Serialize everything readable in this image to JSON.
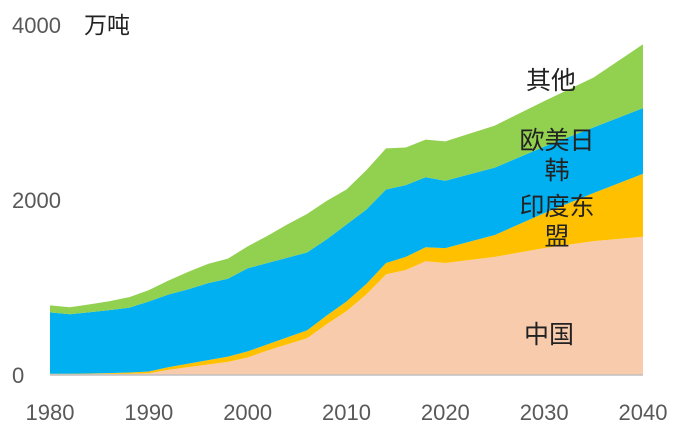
{
  "chart_data": {
    "type": "area",
    "stacked": true,
    "unit": "万吨",
    "ylim": [
      0,
      4000
    ],
    "xlim": [
      1980,
      2040
    ],
    "x_ticks": [
      "1980",
      "1990",
      "2000",
      "2010",
      "2020",
      "2030",
      "2040"
    ],
    "y_ticks": [
      "0",
      "2000",
      "4000"
    ],
    "grid": false,
    "legend": "inline labels",
    "x": [
      1980,
      1982,
      1984,
      1986,
      1988,
      1990,
      1992,
      1994,
      1996,
      1998,
      2000,
      2002,
      2004,
      2006,
      2008,
      2010,
      2012,
      2014,
      2016,
      2018,
      2020,
      2025,
      2030,
      2035,
      2040
    ],
    "series": [
      {
        "name": "中国",
        "label_lines": [
          "中国"
        ],
        "color": "#F8CBAD",
        "values": [
          10,
          10,
          12,
          12,
          14,
          20,
          60,
          90,
          120,
          150,
          200,
          280,
          350,
          420,
          580,
          730,
          920,
          1150,
          1200,
          1300,
          1280,
          1350,
          1450,
          1530,
          1580
        ]
      },
      {
        "name": "印度东盟",
        "label_lines": [
          "印度东",
          "盟"
        ],
        "color": "#FFC000",
        "values": [
          5,
          5,
          5,
          10,
          15,
          20,
          30,
          40,
          50,
          60,
          70,
          70,
          80,
          90,
          100,
          110,
          120,
          130,
          150,
          160,
          170,
          250,
          400,
          550,
          720
        ]
      },
      {
        "name": "欧美日韩",
        "label_lines": [
          "欧美日",
          "韩"
        ],
        "color": "#00B0F0",
        "values": [
          700,
          680,
          700,
          720,
          740,
          800,
          830,
          850,
          880,
          890,
          950,
          930,
          910,
          890,
          870,
          880,
          850,
          840,
          820,
          800,
          770,
          770,
          760,
          750,
          750
        ]
      },
      {
        "name": "其他",
        "label_lines": [
          "其他"
        ],
        "color": "#92D050",
        "values": [
          80,
          80,
          90,
          100,
          120,
          130,
          160,
          200,
          220,
          230,
          250,
          310,
          380,
          440,
          440,
          400,
          450,
          470,
          430,
          430,
          450,
          480,
          520,
          570,
          730
        ]
      }
    ]
  }
}
